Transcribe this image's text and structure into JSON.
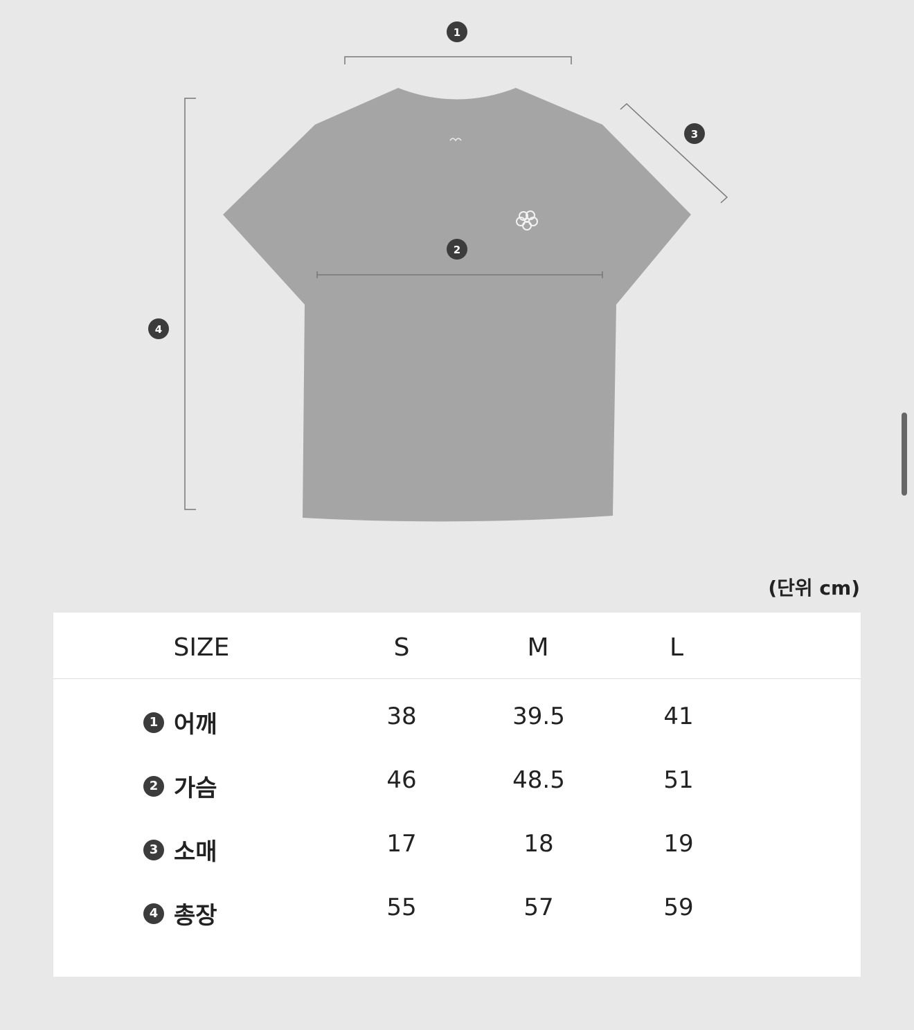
{
  "figure": {
    "markers": [
      "1",
      "2",
      "3",
      "4"
    ],
    "colors": {
      "shirt": "#a5a5a5",
      "background": "#e8e8e8",
      "marker": "#3c3c3c"
    }
  },
  "unit_label": "(단위 cm)",
  "table": {
    "headers": [
      "SIZE",
      "S",
      "M",
      "L"
    ],
    "rows": [
      {
        "num": "1",
        "label": "어깨",
        "values": [
          "38",
          "39.5",
          "41"
        ]
      },
      {
        "num": "2",
        "label": "가슴",
        "values": [
          "46",
          "48.5",
          "51"
        ]
      },
      {
        "num": "3",
        "label": "소매",
        "values": [
          "17",
          "18",
          "19"
        ]
      },
      {
        "num": "4",
        "label": "총장",
        "values": [
          "55",
          "57",
          "59"
        ]
      }
    ]
  }
}
